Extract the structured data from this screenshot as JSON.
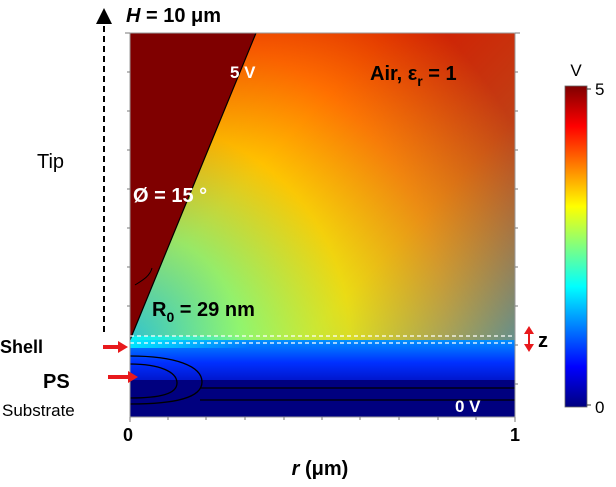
{
  "labels": {
    "height": "H = 10 μm",
    "height_var": "H",
    "height_value": " = 10 μm",
    "tip": "Tip",
    "tip_voltage": "5 V",
    "medium": "Air, ε",
    "medium_sub": "r",
    "medium_value": " = 1",
    "angle": "Ø = 15 °",
    "radius_main": "R",
    "radius_sub": "0",
    "radius_value": " = 29 nm",
    "shell": "Shell",
    "ps": "PS",
    "substrate": "Substrate",
    "ground_voltage": "0 V",
    "gap": "z",
    "x_tick_0": "0",
    "x_tick_1": "1",
    "x_axis_var": "r",
    "x_axis_unit": " (μm)"
  },
  "colorbar": {
    "unit": "V",
    "tick_min": "0",
    "tick_max": "5",
    "min": 0,
    "max": 5
  },
  "colors": {
    "arrow": "#e8191c",
    "tip_fill": "#7f0000",
    "substrate_fill": "#00007f"
  }
}
